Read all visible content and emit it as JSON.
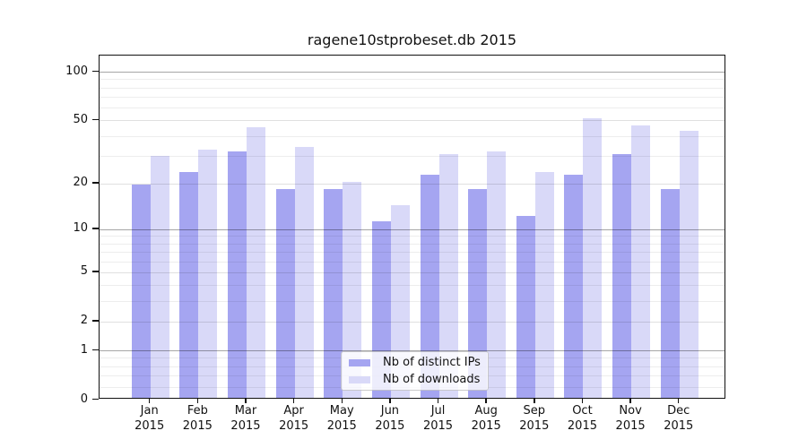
{
  "figure": {
    "title": "ragene10stprobeset.db 2015"
  },
  "chart_data": {
    "type": "bar",
    "title": "ragene10stprobeset.db 2015",
    "categories": [
      "Jan",
      "Feb",
      "Mar",
      "Apr",
      "May",
      "Jun",
      "Jul",
      "Aug",
      "Sep",
      "Oct",
      "Nov",
      "Dec"
    ],
    "year": "2015",
    "series": [
      {
        "name": "Nb of distinct IPs",
        "color": "#a5a5f1",
        "values": [
          19,
          23,
          31,
          18,
          18,
          11,
          22,
          18,
          12,
          22,
          30,
          18
        ]
      },
      {
        "name": "Nb of downloads",
        "color": "#d9d9f8",
        "values": [
          29,
          32,
          44,
          33,
          20,
          14,
          30,
          31,
          23,
          50,
          45,
          42
        ]
      }
    ],
    "yscale": "log1p",
    "ylim": [
      0,
      126
    ],
    "yticks": [
      0,
      1,
      2,
      5,
      10,
      20,
      50,
      100
    ],
    "emphasized_gridlines": [
      1,
      10,
      100
    ],
    "minor_gridlines": [
      0.2,
      0.4,
      0.6,
      0.8,
      3,
      4,
      6,
      7,
      8,
      9,
      30,
      40,
      60,
      70,
      80,
      90
    ],
    "grid": true,
    "legend_position": "lower center",
    "xlabel": "",
    "ylabel": ""
  }
}
